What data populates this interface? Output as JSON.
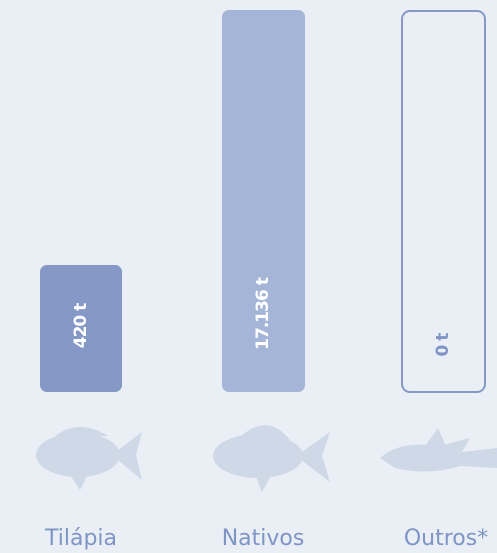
{
  "items": [
    {
      "label": "Tilápia",
      "value": "420 t"
    },
    {
      "label": "Nativos",
      "value": "17.136 t"
    },
    {
      "label": "Outros*",
      "value": "0 t"
    }
  ]
}
